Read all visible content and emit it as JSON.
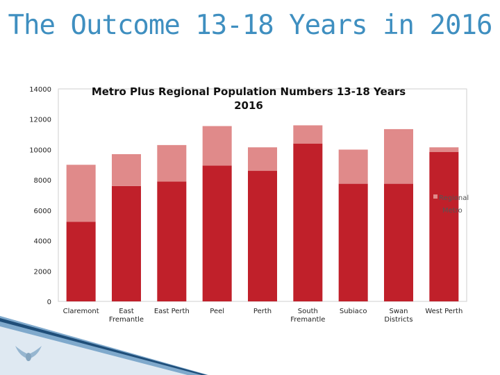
{
  "slide": {
    "title": "The Outcome 13-18 Years in 2016"
  },
  "colors": {
    "metro": "#c0202a",
    "regional": "#e08a8a",
    "title": "#3f8fc0"
  },
  "chart_data": {
    "type": "bar",
    "stacked": true,
    "title": [
      "Metro Plus Regional Population Numbers 13-18 Years",
      "2016"
    ],
    "categories": [
      [
        "Claremont"
      ],
      [
        "East",
        "Fremantle"
      ],
      [
        "East Perth"
      ],
      [
        "Peel"
      ],
      [
        "Perth"
      ],
      [
        "South",
        "Fremantle"
      ],
      [
        "Subiaco"
      ],
      [
        "Swan",
        "Districts"
      ],
      [
        "West Perth"
      ]
    ],
    "series": [
      {
        "name": "Metro",
        "values": [
          5250,
          7600,
          7900,
          8950,
          8600,
          10400,
          7750,
          7750,
          9850
        ]
      },
      {
        "name": "Regional",
        "values": [
          3750,
          2100,
          2400,
          2600,
          1550,
          1200,
          2250,
          3600,
          300
        ]
      }
    ],
    "legend": [
      "Regional",
      "Metro"
    ],
    "legend_position": "right",
    "ylim": [
      0,
      14000
    ],
    "yticks": [
      0,
      2000,
      4000,
      6000,
      8000,
      10000,
      12000,
      14000
    ],
    "ytick_labels": [
      "0",
      "2000",
      "4000",
      "6000",
      "8000",
      "10000",
      "12000",
      "14000"
    ]
  }
}
